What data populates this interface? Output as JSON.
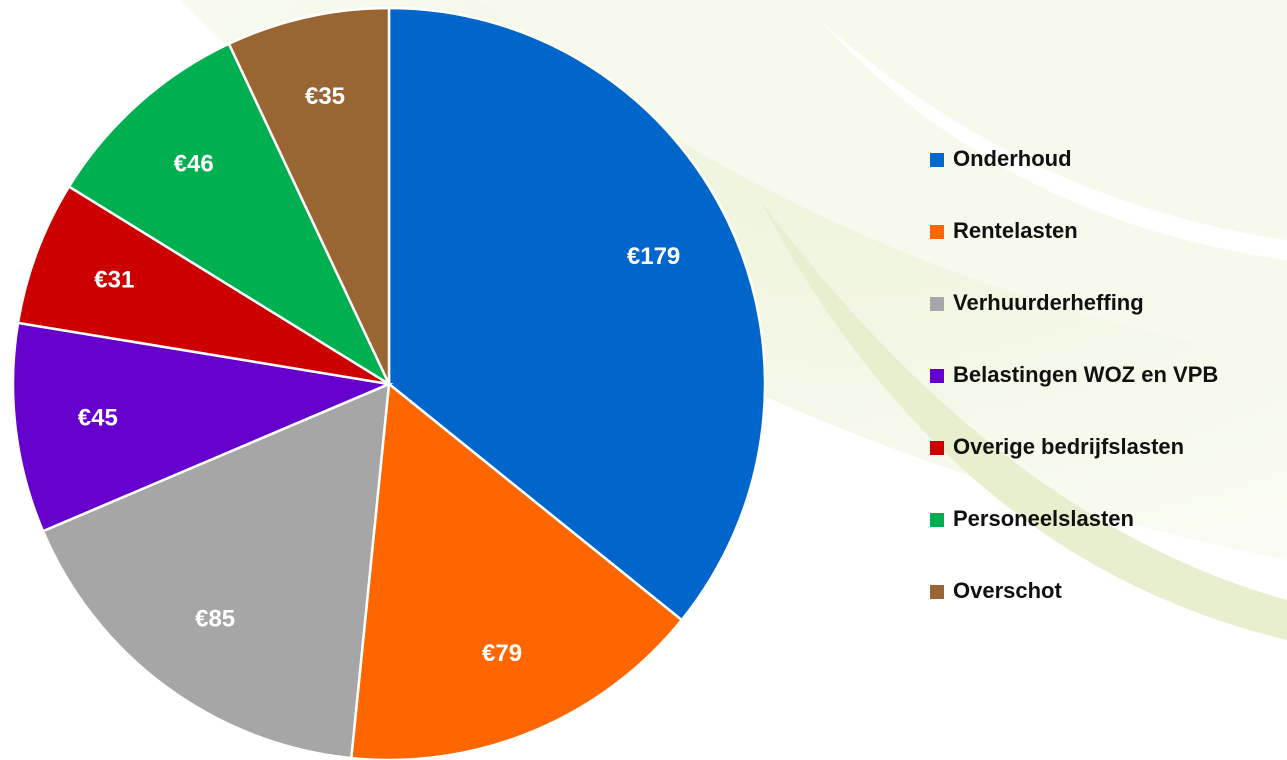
{
  "chart_data": {
    "type": "pie",
    "categories": [
      "Onderhoud",
      "Rentelasten",
      "Verhuurderheffing",
      "Belastingen WOZ en VPB",
      "Overige bedrijfslasten",
      "Personeelslasten",
      "Overschot"
    ],
    "values": [
      179,
      79,
      85,
      45,
      31,
      46,
      35
    ],
    "value_labels": [
      "€179",
      "€79",
      "€85",
      "€45",
      "€31",
      "€46",
      "€35"
    ],
    "colors": [
      "#0066cc",
      "#ff6600",
      "#a6a6a6",
      "#6600cc",
      "#cc0000",
      "#00b050",
      "#996633"
    ],
    "legend": "right"
  }
}
